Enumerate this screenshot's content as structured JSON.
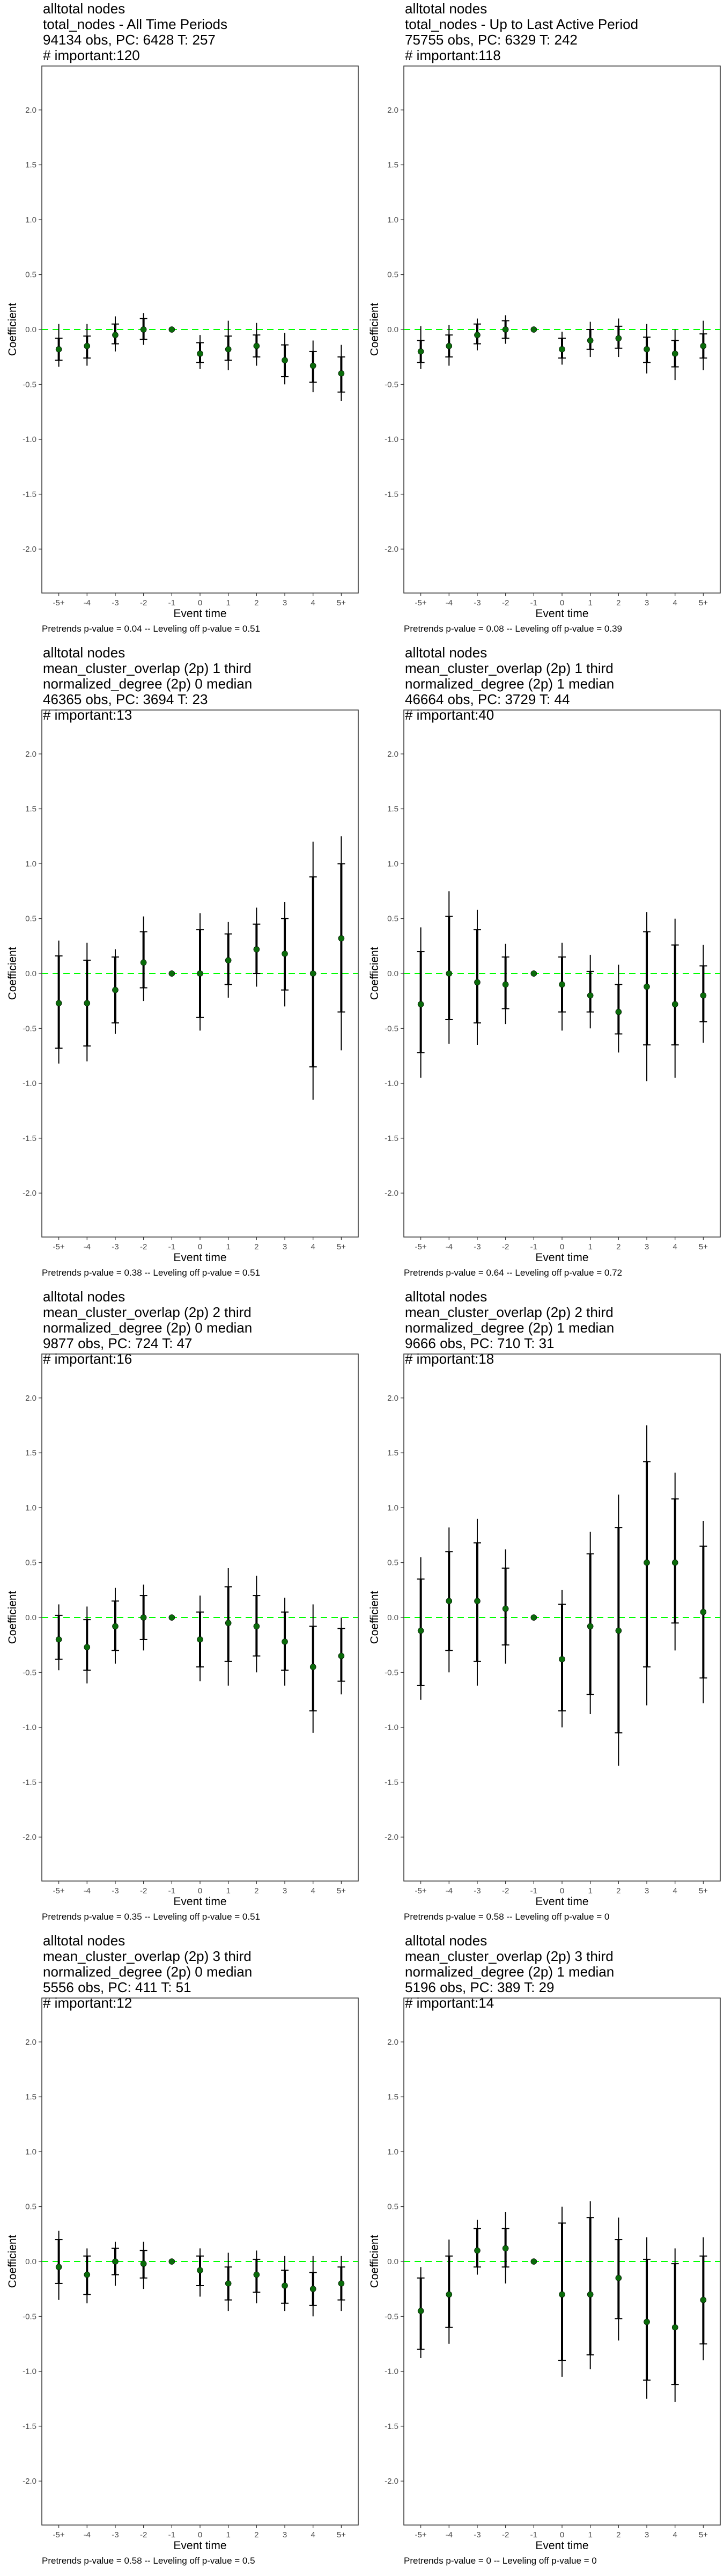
{
  "colors": {
    "point": "#0a6b0a",
    "zero_line": "#00ff00",
    "errorbar": "#000000",
    "frame": "#333333",
    "tick_label": "#4d4d4d"
  },
  "chart_data": [
    {
      "type": "scatter",
      "title_lines": [
        "alltotal nodes",
        "total_nodes - All Time Periods",
        "94134 obs, PC: 6428 T: 257",
        "# important:120"
      ],
      "xlabel": "Event time",
      "ylabel": "Coefficient",
      "categories": [
        "-5+",
        "-4",
        "-3",
        "-2",
        "-1",
        "0",
        "1",
        "2",
        "3",
        "4",
        "5+"
      ],
      "yticks": [
        "2.0",
        "1.5",
        "1.0",
        "0.5",
        "0.0",
        "-0.5",
        "-1.0",
        "-1.5",
        "-2.0"
      ],
      "ylim": [
        -2.4,
        2.4
      ],
      "grid": false,
      "zero_line": 0,
      "values": [
        -0.18,
        -0.15,
        -0.05,
        0.0,
        0.0,
        -0.22,
        -0.18,
        -0.15,
        -0.28,
        -0.33,
        -0.4
      ],
      "ci_inner": [
        [
          -0.28,
          -0.08
        ],
        [
          -0.26,
          -0.06
        ],
        [
          -0.13,
          0.05
        ],
        [
          -0.09,
          0.1
        ],
        null,
        [
          -0.3,
          -0.12
        ],
        [
          -0.28,
          -0.06
        ],
        [
          -0.25,
          -0.05
        ],
        [
          -0.43,
          -0.14
        ],
        [
          -0.48,
          -0.2
        ],
        [
          -0.57,
          -0.25
        ]
      ],
      "ci_outer": [
        [
          -0.34,
          0.05
        ],
        [
          -0.33,
          0.05
        ],
        [
          -0.2,
          0.12
        ],
        [
          -0.14,
          0.15
        ],
        null,
        [
          -0.36,
          -0.05
        ],
        [
          -0.37,
          0.08
        ],
        [
          -0.33,
          0.06
        ],
        [
          -0.5,
          -0.03
        ],
        [
          -0.57,
          -0.1
        ],
        [
          -0.65,
          -0.14
        ]
      ],
      "footer": "Pretrends p-value = 0.04 -- Leveling off p-value = 0.51"
    },
    {
      "type": "scatter",
      "title_lines": [
        "alltotal nodes",
        "total_nodes - Up to Last Active Period",
        "75755 obs, PC: 6329 T: 242",
        "# important:118"
      ],
      "xlabel": "Event time",
      "ylabel": "Coefficient",
      "categories": [
        "-5+",
        "-4",
        "-3",
        "-2",
        "-1",
        "0",
        "1",
        "2",
        "3",
        "4",
        "5+"
      ],
      "yticks": [
        "2.0",
        "1.5",
        "1.0",
        "0.5",
        "0.0",
        "-0.5",
        "-1.0",
        "-1.5",
        "-2.0"
      ],
      "ylim": [
        -2.4,
        2.4
      ],
      "grid": false,
      "zero_line": 0,
      "values": [
        -0.2,
        -0.15,
        -0.05,
        0.0,
        0.0,
        -0.18,
        -0.1,
        -0.08,
        -0.18,
        -0.22,
        -0.15
      ],
      "ci_inner": [
        [
          -0.3,
          -0.1
        ],
        [
          -0.25,
          -0.05
        ],
        [
          -0.13,
          0.05
        ],
        [
          -0.08,
          0.08
        ],
        null,
        [
          -0.26,
          -0.08
        ],
        [
          -0.18,
          0.0
        ],
        [
          -0.17,
          0.03
        ],
        [
          -0.3,
          -0.07
        ],
        [
          -0.34,
          -0.1
        ],
        [
          -0.26,
          -0.04
        ]
      ],
      "ci_outer": [
        [
          -0.36,
          0.03
        ],
        [
          -0.33,
          0.04
        ],
        [
          -0.19,
          0.1
        ],
        [
          -0.13,
          0.13
        ],
        null,
        [
          -0.32,
          -0.02
        ],
        [
          -0.25,
          0.07
        ],
        [
          -0.25,
          0.1
        ],
        [
          -0.4,
          0.05
        ],
        [
          -0.46,
          0.0
        ],
        [
          -0.37,
          0.08
        ]
      ],
      "footer": "Pretrends p-value = 0.08 -- Leveling off p-value = 0.39"
    },
    {
      "type": "scatter",
      "title_lines": [
        "alltotal nodes",
        "mean_cluster_overlap (2p) 1 third",
        "normalized_degree (2p) 0 median",
        "46365 obs, PC: 3694 T: 23",
        "# important:13"
      ],
      "xlabel": "Event time",
      "ylabel": "Coefficient",
      "categories": [
        "-5+",
        "-4",
        "-3",
        "-2",
        "-1",
        "0",
        "1",
        "2",
        "3",
        "4",
        "5+"
      ],
      "yticks": [
        "2.0",
        "1.5",
        "1.0",
        "0.5",
        "0.0",
        "-0.5",
        "-1.0",
        "-1.5",
        "-2.0"
      ],
      "ylim": [
        -2.4,
        2.4
      ],
      "grid": false,
      "zero_line": 0,
      "values": [
        -0.27,
        -0.27,
        -0.15,
        0.1,
        0.0,
        0.0,
        0.12,
        0.22,
        0.18,
        0.0,
        0.32
      ],
      "ci_inner": [
        [
          -0.68,
          0.16
        ],
        [
          -0.66,
          0.12
        ],
        [
          -0.45,
          0.15
        ],
        [
          -0.13,
          0.38
        ],
        null,
        [
          -0.4,
          0.4
        ],
        [
          -0.1,
          0.36
        ],
        [
          0.0,
          0.45
        ],
        [
          -0.15,
          0.5
        ],
        [
          -0.85,
          0.88
        ],
        [
          -0.35,
          1.0
        ]
      ],
      "ci_outer": [
        [
          -0.82,
          0.3
        ],
        [
          -0.8,
          0.28
        ],
        [
          -0.55,
          0.22
        ],
        [
          -0.25,
          0.52
        ],
        null,
        [
          -0.52,
          0.55
        ],
        [
          -0.22,
          0.47
        ],
        [
          -0.12,
          0.6
        ],
        [
          -0.3,
          0.65
        ],
        [
          -1.15,
          1.2
        ],
        [
          -0.7,
          1.25
        ]
      ],
      "footer": "Pretrends p-value = 0.38 -- Leveling off p-value = 0.51"
    },
    {
      "type": "scatter",
      "title_lines": [
        "alltotal nodes",
        "mean_cluster_overlap (2p) 1 third",
        "normalized_degree (2p) 1 median",
        "46664 obs, PC: 3729 T: 44",
        "# important:40"
      ],
      "xlabel": "Event time",
      "ylabel": "Coefficient",
      "categories": [
        "-5+",
        "-4",
        "-3",
        "-2",
        "-1",
        "0",
        "1",
        "2",
        "3",
        "4",
        "5+"
      ],
      "yticks": [
        "2.0",
        "1.5",
        "1.0",
        "0.5",
        "0.0",
        "-0.5",
        "-1.0",
        "-1.5",
        "-2.0"
      ],
      "ylim": [
        -2.4,
        2.4
      ],
      "grid": false,
      "zero_line": 0,
      "values": [
        -0.28,
        0.0,
        -0.08,
        -0.1,
        0.0,
        -0.1,
        -0.2,
        -0.35,
        -0.12,
        -0.28,
        -0.2
      ],
      "ci_inner": [
        [
          -0.72,
          0.2
        ],
        [
          -0.42,
          0.52
        ],
        [
          -0.45,
          0.4
        ],
        [
          -0.32,
          0.15
        ],
        null,
        [
          -0.35,
          0.15
        ],
        [
          -0.35,
          0.02
        ],
        [
          -0.55,
          -0.1
        ],
        [
          -0.65,
          0.38
        ],
        [
          -0.65,
          0.26
        ],
        [
          -0.44,
          0.07
        ]
      ],
      "ci_outer": [
        [
          -0.95,
          0.42
        ],
        [
          -0.64,
          0.75
        ],
        [
          -0.65,
          0.58
        ],
        [
          -0.46,
          0.27
        ],
        null,
        [
          -0.52,
          0.28
        ],
        [
          -0.5,
          0.17
        ],
        [
          -0.72,
          0.08
        ],
        [
          -0.98,
          0.56
        ],
        [
          -0.95,
          0.5
        ],
        [
          -0.63,
          0.26
        ]
      ],
      "footer": "Pretrends p-value = 0.64 -- Leveling off p-value = 0.72"
    },
    {
      "type": "scatter",
      "title_lines": [
        "alltotal nodes",
        "mean_cluster_overlap (2p) 2 third",
        "normalized_degree (2p) 0 median",
        "9877 obs, PC: 724 T: 47",
        "# important:16"
      ],
      "xlabel": "Event time",
      "ylabel": "Coefficient",
      "categories": [
        "-5+",
        "-4",
        "-3",
        "-2",
        "-1",
        "0",
        "1",
        "2",
        "3",
        "4",
        "5+"
      ],
      "yticks": [
        "2.0",
        "1.5",
        "1.0",
        "0.5",
        "0.0",
        "-0.5",
        "-1.0",
        "-1.5",
        "-2.0"
      ],
      "ylim": [
        -2.4,
        2.4
      ],
      "grid": false,
      "zero_line": 0,
      "values": [
        -0.2,
        -0.27,
        -0.08,
        0.0,
        0.0,
        -0.2,
        -0.05,
        -0.08,
        -0.22,
        -0.45,
        -0.35
      ],
      "ci_inner": [
        [
          -0.38,
          0.02
        ],
        [
          -0.48,
          -0.02
        ],
        [
          -0.3,
          0.15
        ],
        [
          -0.2,
          0.2
        ],
        null,
        [
          -0.45,
          0.05
        ],
        [
          -0.4,
          0.28
        ],
        [
          -0.35,
          0.2
        ],
        [
          -0.48,
          0.05
        ],
        [
          -0.85,
          -0.08
        ],
        [
          -0.58,
          -0.1
        ]
      ],
      "ci_outer": [
        [
          -0.48,
          0.12
        ],
        [
          -0.6,
          0.1
        ],
        [
          -0.42,
          0.27
        ],
        [
          -0.3,
          0.3
        ],
        null,
        [
          -0.58,
          0.2
        ],
        [
          -0.62,
          0.45
        ],
        [
          -0.5,
          0.38
        ],
        [
          -0.62,
          0.18
        ],
        [
          -1.05,
          0.12
        ],
        [
          -0.7,
          0.0
        ]
      ],
      "footer": "Pretrends p-value = 0.35 -- Leveling off p-value = 0.51"
    },
    {
      "type": "scatter",
      "title_lines": [
        "alltotal nodes",
        "mean_cluster_overlap (2p) 2 third",
        "normalized_degree (2p) 1 median",
        "9666 obs, PC: 710 T: 31",
        "# important:18"
      ],
      "xlabel": "Event time",
      "ylabel": "Coefficient",
      "categories": [
        "-5+",
        "-4",
        "-3",
        "-2",
        "-1",
        "0",
        "1",
        "2",
        "3",
        "4",
        "5+"
      ],
      "yticks": [
        "2.0",
        "1.5",
        "1.0",
        "0.5",
        "0.0",
        "-0.5",
        "-1.0",
        "-1.5",
        "-2.0"
      ],
      "ylim": [
        -2.4,
        2.4
      ],
      "grid": false,
      "zero_line": 0,
      "values": [
        -0.12,
        0.15,
        0.15,
        0.08,
        0.0,
        -0.38,
        -0.08,
        -0.12,
        0.5,
        0.5,
        0.05
      ],
      "ci_inner": [
        [
          -0.62,
          0.35
        ],
        [
          -0.3,
          0.6
        ],
        [
          -0.4,
          0.68
        ],
        [
          -0.25,
          0.45
        ],
        null,
        [
          -0.85,
          0.12
        ],
        [
          -0.7,
          0.58
        ],
        [
          -1.05,
          0.82
        ],
        [
          -0.45,
          1.42
        ],
        [
          -0.05,
          1.08
        ],
        [
          -0.55,
          0.65
        ]
      ],
      "ci_outer": [
        [
          -0.75,
          0.55
        ],
        [
          -0.5,
          0.82
        ],
        [
          -0.62,
          0.9
        ],
        [
          -0.42,
          0.62
        ],
        null,
        [
          -1.0,
          0.25
        ],
        [
          -0.88,
          0.78
        ],
        [
          -1.35,
          1.12
        ],
        [
          -0.8,
          1.75
        ],
        [
          -0.3,
          1.32
        ],
        [
          -0.78,
          0.88
        ]
      ],
      "footer": "Pretrends p-value = 0.58 -- Leveling off p-value = 0"
    },
    {
      "type": "scatter",
      "title_lines": [
        "alltotal nodes",
        "mean_cluster_overlap (2p) 3 third",
        "normalized_degree (2p) 0 median",
        "5556 obs, PC: 411 T: 51",
        "# important:12"
      ],
      "xlabel": "Event time",
      "ylabel": "Coefficient",
      "categories": [
        "-5+",
        "-4",
        "-3",
        "-2",
        "-1",
        "0",
        "1",
        "2",
        "3",
        "4",
        "5+"
      ],
      "yticks": [
        "2.0",
        "1.5",
        "1.0",
        "0.5",
        "0.0",
        "-0.5",
        "-1.0",
        "-1.5",
        "-2.0"
      ],
      "ylim": [
        -2.4,
        2.4
      ],
      "grid": false,
      "zero_line": 0,
      "values": [
        -0.05,
        -0.12,
        0.0,
        -0.02,
        0.0,
        -0.08,
        -0.2,
        -0.12,
        -0.22,
        -0.25,
        -0.2
      ],
      "ci_inner": [
        [
          -0.2,
          0.2
        ],
        [
          -0.3,
          0.05
        ],
        [
          -0.12,
          0.12
        ],
        [
          -0.15,
          0.1
        ],
        null,
        [
          -0.22,
          0.05
        ],
        [
          -0.35,
          -0.05
        ],
        [
          -0.28,
          0.02
        ],
        [
          -0.38,
          -0.08
        ],
        [
          -0.4,
          -0.1
        ],
        [
          -0.35,
          -0.05
        ]
      ],
      "ci_outer": [
        [
          -0.35,
          0.28
        ],
        [
          -0.38,
          0.12
        ],
        [
          -0.22,
          0.18
        ],
        [
          -0.25,
          0.18
        ],
        null,
        [
          -0.32,
          0.12
        ],
        [
          -0.45,
          0.08
        ],
        [
          -0.38,
          0.1
        ],
        [
          -0.45,
          0.05
        ],
        [
          -0.5,
          0.05
        ],
        [
          -0.45,
          0.05
        ]
      ],
      "footer": "Pretrends p-value = 0.58 -- Leveling off p-value = 0.5"
    },
    {
      "type": "scatter",
      "title_lines": [
        "alltotal nodes",
        "mean_cluster_overlap (2p) 3 third",
        "normalized_degree (2p) 1 median",
        "5196 obs, PC: 389 T: 29",
        "# important:14"
      ],
      "xlabel": "Event time",
      "ylabel": "Coefficient",
      "categories": [
        "-5+",
        "-4",
        "-3",
        "-2",
        "-1",
        "0",
        "1",
        "2",
        "3",
        "4",
        "5+"
      ],
      "yticks": [
        "2.0",
        "1.5",
        "1.0",
        "0.5",
        "0.0",
        "-0.5",
        "-1.0",
        "-1.5",
        "-2.0"
      ],
      "ylim": [
        -2.4,
        2.4
      ],
      "grid": false,
      "zero_line": 0,
      "values": [
        -0.45,
        -0.3,
        0.1,
        0.12,
        0.0,
        -0.3,
        -0.3,
        -0.15,
        -0.55,
        -0.6,
        -0.35
      ],
      "ci_inner": [
        [
          -0.8,
          -0.15
        ],
        [
          -0.6,
          0.05
        ],
        [
          -0.05,
          0.3
        ],
        [
          -0.05,
          0.3
        ],
        null,
        [
          -0.9,
          0.35
        ],
        [
          -0.85,
          0.4
        ],
        [
          -0.52,
          0.2
        ],
        [
          -1.08,
          0.02
        ],
        [
          -1.12,
          -0.02
        ],
        [
          -0.75,
          0.05
        ]
      ],
      "ci_outer": [
        [
          -0.88,
          -0.05
        ],
        [
          -0.75,
          0.2
        ],
        [
          -0.12,
          0.38
        ],
        [
          -0.2,
          0.45
        ],
        null,
        [
          -1.05,
          0.5
        ],
        [
          -0.98,
          0.55
        ],
        [
          -0.72,
          0.4
        ],
        [
          -1.25,
          0.22
        ],
        [
          -1.28,
          0.12
        ],
        [
          -0.9,
          0.22
        ]
      ],
      "footer": "Pretrends p-value = 0 -- Leveling off p-value = 0"
    }
  ]
}
